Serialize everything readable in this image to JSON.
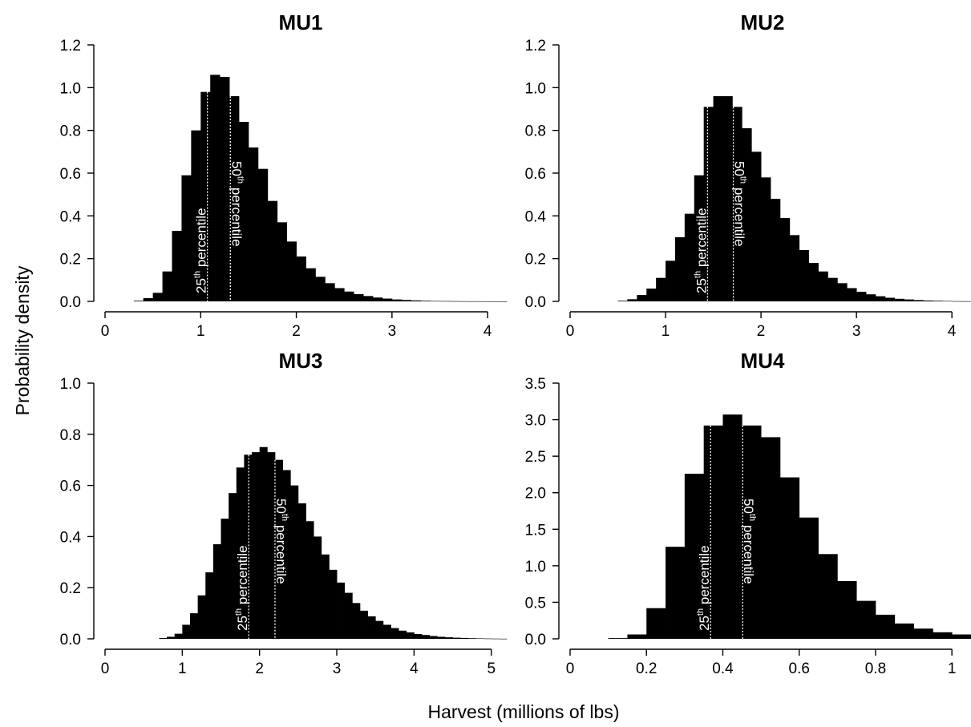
{
  "figure": {
    "xlabel": "Harvest (millions of lbs)",
    "ylabel": "Probability density"
  },
  "chart_data": [
    {
      "type": "bar",
      "title": "MU1",
      "bin_width": 0.1,
      "x_bin_starts": [
        0.3,
        0.4,
        0.5,
        0.6,
        0.7,
        0.8,
        0.9,
        1.0,
        1.1,
        1.2,
        1.3,
        1.4,
        1.5,
        1.6,
        1.7,
        1.8,
        1.9,
        2.0,
        2.1,
        2.2,
        2.3,
        2.4,
        2.5,
        2.6,
        2.7,
        2.8,
        2.9,
        3.0,
        3.1,
        3.2,
        3.3,
        3.4,
        3.5,
        3.6,
        3.7,
        3.8,
        3.9,
        4.0,
        4.1
      ],
      "values": [
        0.003,
        0.015,
        0.04,
        0.14,
        0.33,
        0.59,
        0.8,
        0.98,
        1.06,
        1.05,
        0.96,
        0.84,
        0.72,
        0.62,
        0.47,
        0.37,
        0.28,
        0.21,
        0.155,
        0.115,
        0.085,
        0.062,
        0.046,
        0.034,
        0.025,
        0.018,
        0.013,
        0.009,
        0.0065,
        0.0045,
        0.003,
        0.002,
        0.0015,
        0.001,
        0.0007,
        0.0005,
        0.0003,
        0.0002,
        0.0001
      ],
      "xlim": [
        0,
        4.2
      ],
      "ylim": [
        0,
        1.2
      ],
      "xticks": [
        "0",
        "1",
        "2",
        "3",
        "4"
      ],
      "yticks": [
        "0.0",
        "0.2",
        "0.4",
        "0.6",
        "0.8",
        "1.0",
        "1.2"
      ],
      "percentiles": [
        {
          "x": 1.07,
          "num": "25",
          "sup": "th",
          "text": " percentile"
        },
        {
          "x": 1.31,
          "num": "50",
          "sup": "th",
          "text": " percentile"
        }
      ]
    },
    {
      "type": "bar",
      "title": "MU2",
      "bin_width": 0.1,
      "x_bin_starts": [
        0.5,
        0.6,
        0.7,
        0.8,
        0.9,
        1.0,
        1.1,
        1.2,
        1.3,
        1.4,
        1.5,
        1.6,
        1.7,
        1.8,
        1.9,
        2.0,
        2.1,
        2.2,
        2.3,
        2.4,
        2.5,
        2.6,
        2.7,
        2.8,
        2.9,
        3.0,
        3.1,
        3.2,
        3.3,
        3.4,
        3.5,
        3.6,
        3.7,
        3.8,
        3.9,
        4.0,
        4.1
      ],
      "values": [
        0.003,
        0.01,
        0.03,
        0.06,
        0.11,
        0.19,
        0.3,
        0.41,
        0.59,
        0.91,
        0.96,
        0.96,
        0.91,
        0.81,
        0.7,
        0.58,
        0.48,
        0.39,
        0.31,
        0.24,
        0.18,
        0.14,
        0.11,
        0.085,
        0.062,
        0.045,
        0.033,
        0.024,
        0.017,
        0.012,
        0.009,
        0.006,
        0.004,
        0.003,
        0.002,
        0.001,
        0.0007
      ],
      "xlim": [
        0,
        4.2
      ],
      "ylim": [
        0,
        1.2
      ],
      "xticks": [
        "0",
        "1",
        "2",
        "3",
        "4"
      ],
      "yticks": [
        "0.0",
        "0.2",
        "0.4",
        "0.6",
        "0.8",
        "1.0",
        "1.2"
      ],
      "percentiles": [
        {
          "x": 1.44,
          "num": "25",
          "sup": "th",
          "text": " percentile"
        },
        {
          "x": 1.71,
          "num": "50",
          "sup": "th",
          "text": " percentile"
        }
      ]
    },
    {
      "type": "bar",
      "title": "MU3",
      "bin_width": 0.1,
      "x_bin_starts": [
        0.7,
        0.8,
        0.9,
        1.0,
        1.1,
        1.2,
        1.3,
        1.4,
        1.5,
        1.6,
        1.7,
        1.8,
        1.9,
        2.0,
        2.1,
        2.2,
        2.3,
        2.4,
        2.5,
        2.6,
        2.7,
        2.8,
        2.9,
        3.0,
        3.1,
        3.2,
        3.3,
        3.4,
        3.5,
        3.6,
        3.7,
        3.8,
        3.9,
        4.0,
        4.1,
        4.2,
        4.3,
        4.4,
        4.5,
        4.6,
        4.7,
        4.8,
        4.9,
        5.0,
        5.1
      ],
      "values": [
        0.003,
        0.008,
        0.02,
        0.055,
        0.1,
        0.17,
        0.26,
        0.37,
        0.47,
        0.57,
        0.67,
        0.72,
        0.73,
        0.75,
        0.73,
        0.7,
        0.66,
        0.6,
        0.53,
        0.46,
        0.4,
        0.33,
        0.27,
        0.22,
        0.18,
        0.14,
        0.11,
        0.088,
        0.07,
        0.055,
        0.042,
        0.032,
        0.025,
        0.019,
        0.015,
        0.011,
        0.008,
        0.006,
        0.0045,
        0.0035,
        0.0025,
        0.0018,
        0.0012,
        0.0008,
        0.0005
      ],
      "xlim": [
        0,
        5.2
      ],
      "ylim": [
        0,
        1.0
      ],
      "xticks": [
        "0",
        "1",
        "2",
        "3",
        "4",
        "5"
      ],
      "yticks": [
        "0.0",
        "0.2",
        "0.4",
        "0.6",
        "0.8",
        "1.0"
      ],
      "percentiles": [
        {
          "x": 1.86,
          "num": "25",
          "sup": "th",
          "text": " percentile"
        },
        {
          "x": 2.2,
          "num": "50",
          "sup": "th",
          "text": " percentile"
        }
      ]
    },
    {
      "type": "bar",
      "title": "MU4",
      "bin_width": 0.05,
      "x_bin_starts": [
        0.1,
        0.15,
        0.2,
        0.25,
        0.3,
        0.35,
        0.4,
        0.45,
        0.5,
        0.55,
        0.6,
        0.65,
        0.7,
        0.75,
        0.8,
        0.85,
        0.9,
        0.95,
        1.0
      ],
      "values": [
        0.01,
        0.06,
        0.42,
        1.26,
        2.26,
        2.92,
        3.07,
        2.92,
        2.76,
        2.21,
        1.66,
        1.16,
        0.79,
        0.52,
        0.33,
        0.21,
        0.14,
        0.09,
        0.06
      ],
      "xlim": [
        0,
        1.05
      ],
      "ylim": [
        0,
        3.5
      ],
      "xticks": [
        "0",
        "0.2",
        "0.4",
        "0.6",
        "0.8",
        "1"
      ],
      "yticks": [
        "0.0",
        "0.5",
        "1.0",
        "1.5",
        "2.0",
        "2.5",
        "3.0",
        "3.5"
      ],
      "percentiles": [
        {
          "x": 0.368,
          "num": "25",
          "sup": "th",
          "text": " percentile"
        },
        {
          "x": 0.452,
          "num": "50",
          "sup": "th",
          "text": " percentile"
        }
      ]
    }
  ]
}
